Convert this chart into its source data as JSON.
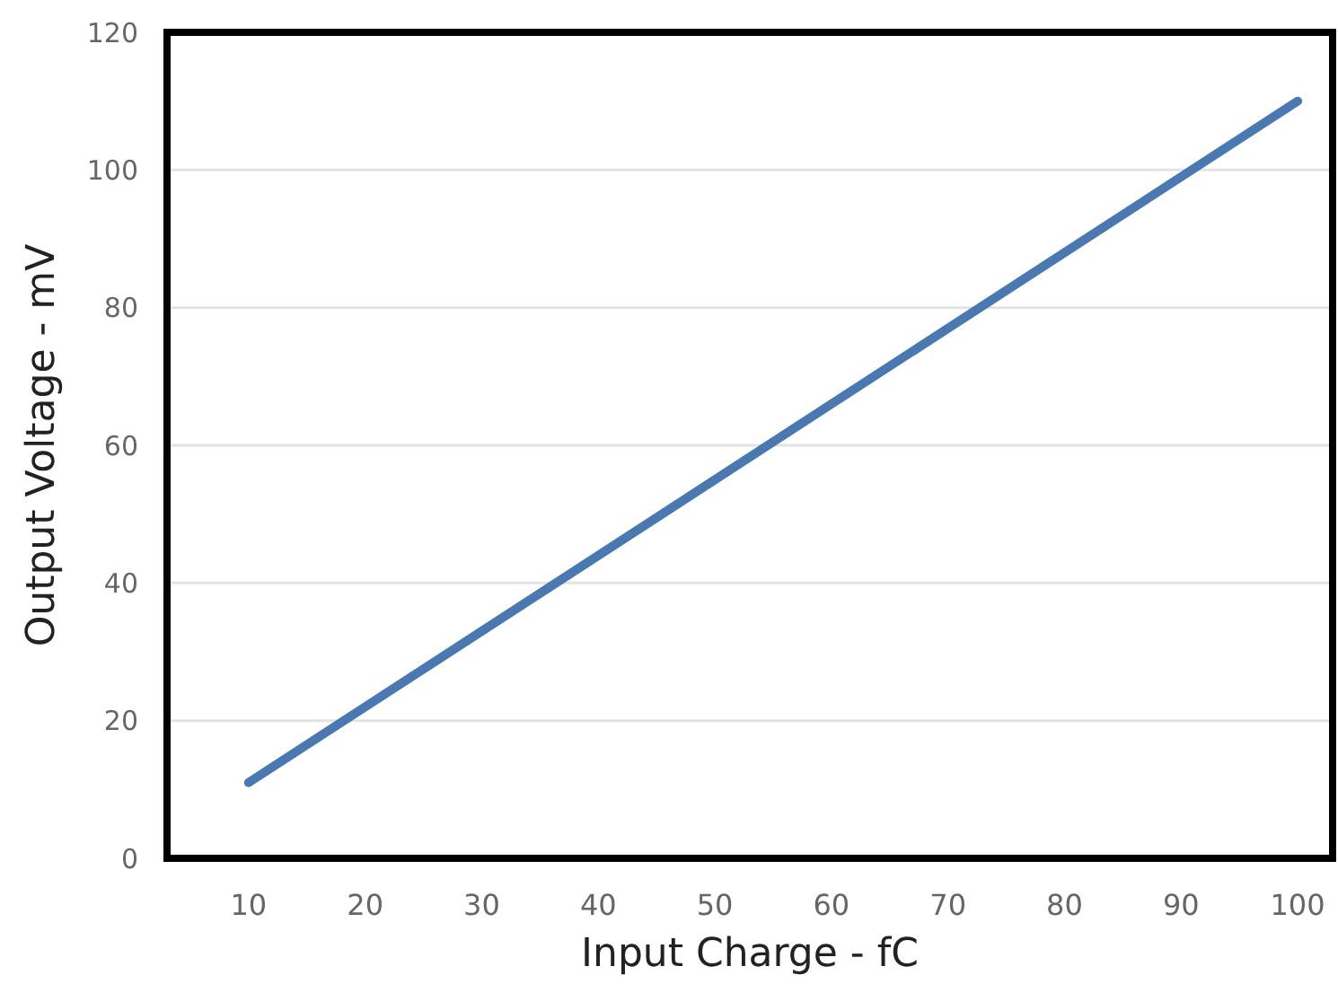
{
  "chart_data": {
    "type": "line",
    "xlabel": "Input Charge - fC",
    "ylabel": "Output Voltage - mV",
    "x": [
      10,
      100
    ],
    "series": [
      {
        "color": "#4a78b0",
        "values": [
          11,
          110
        ]
      }
    ],
    "xlim": [
      3,
      103
    ],
    "xticks": [
      10,
      20,
      30,
      40,
      50,
      60,
      70,
      80,
      90,
      100
    ],
    "ylim": [
      0,
      120
    ],
    "yticks": [
      0,
      20,
      40,
      60,
      80,
      100,
      120
    ],
    "grid": "y",
    "marker": "none",
    "line_style": "solid"
  }
}
